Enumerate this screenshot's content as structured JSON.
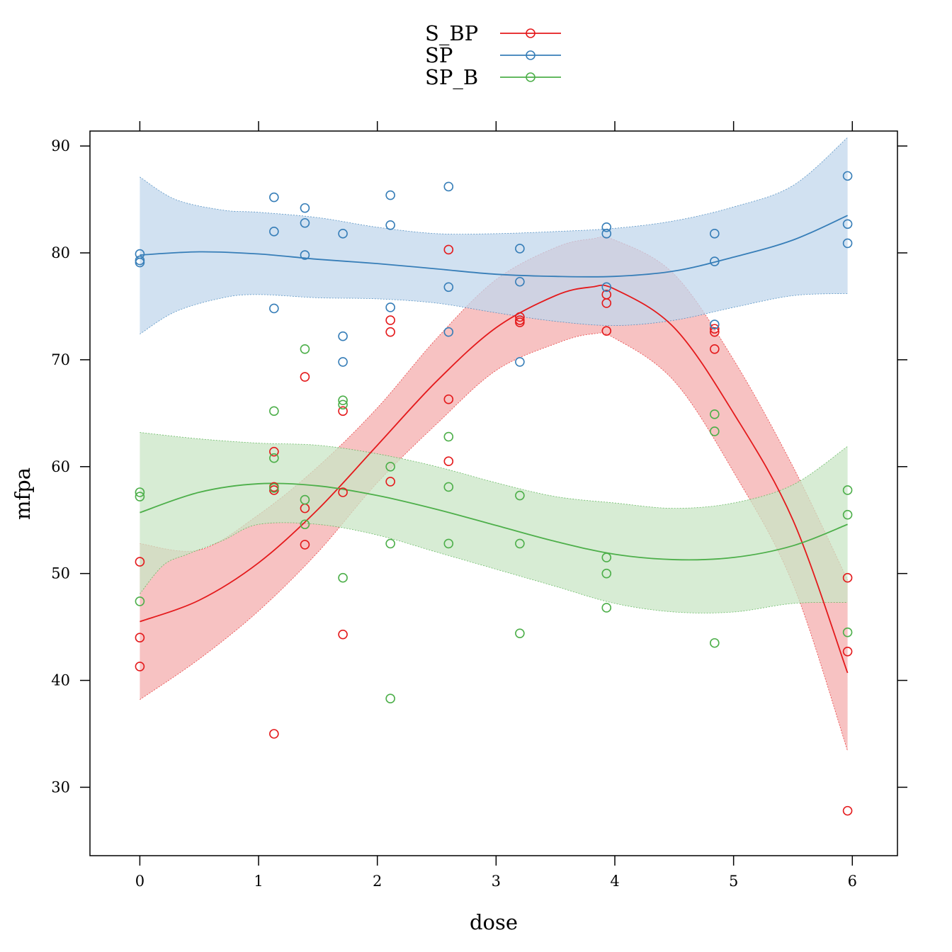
{
  "chart_data": {
    "type": "scatter",
    "xlabel": "dose",
    "ylabel": "mfpa",
    "xlim": [
      -0.42,
      6.38
    ],
    "ylim": [
      23.6,
      91.4
    ],
    "xticks": [
      0,
      1,
      2,
      3,
      4,
      5,
      6
    ],
    "yticks": [
      30,
      40,
      50,
      60,
      70,
      80,
      90
    ],
    "grid": false,
    "legend_position": "top-center",
    "series": [
      {
        "name": "S_BP",
        "color": "#e41a1c",
        "fill": "#f4aeae",
        "points": [
          [
            0,
            51.1
          ],
          [
            0,
            44.0
          ],
          [
            0,
            41.3
          ],
          [
            1.13,
            61.4
          ],
          [
            1.13,
            58.1
          ],
          [
            1.13,
            57.8
          ],
          [
            1.13,
            35.0
          ],
          [
            1.39,
            68.4
          ],
          [
            1.39,
            56.1
          ],
          [
            1.39,
            52.7
          ],
          [
            1.71,
            65.2
          ],
          [
            1.71,
            57.6
          ],
          [
            1.71,
            44.3
          ],
          [
            2.11,
            73.7
          ],
          [
            2.11,
            72.6
          ],
          [
            2.11,
            58.6
          ],
          [
            2.6,
            80.3
          ],
          [
            2.6,
            66.3
          ],
          [
            2.6,
            60.5
          ],
          [
            3.2,
            74.0
          ],
          [
            3.2,
            73.7
          ],
          [
            3.2,
            73.5
          ],
          [
            3.93,
            76.1
          ],
          [
            3.93,
            75.3
          ],
          [
            3.93,
            72.7
          ],
          [
            4.84,
            72.9
          ],
          [
            4.84,
            72.6
          ],
          [
            4.84,
            71.0
          ],
          [
            5.96,
            49.6
          ],
          [
            5.96,
            42.7
          ],
          [
            5.96,
            27.8
          ]
        ],
        "fit": [
          [
            0,
            45.5
          ],
          [
            0.5,
            47.5
          ],
          [
            1,
            51.0
          ],
          [
            1.5,
            56.0
          ],
          [
            2,
            62.0
          ],
          [
            2.5,
            68.0
          ],
          [
            3,
            73.0
          ],
          [
            3.5,
            76.0
          ],
          [
            3.8,
            76.8
          ],
          [
            4,
            76.6
          ],
          [
            4.5,
            73.0
          ],
          [
            5,
            65.0
          ],
          [
            5.5,
            55.0
          ],
          [
            5.96,
            40.7
          ]
        ],
        "band_upper": [
          [
            0,
            52.8
          ],
          [
            0.5,
            52.2
          ],
          [
            1,
            55.5
          ],
          [
            1.5,
            60.0
          ],
          [
            2,
            65.5
          ],
          [
            2.5,
            72.0
          ],
          [
            3,
            77.5
          ],
          [
            3.5,
            80.5
          ],
          [
            3.8,
            81.3
          ],
          [
            4,
            81.2
          ],
          [
            4.5,
            78.0
          ],
          [
            5,
            70.0
          ],
          [
            5.5,
            60.0
          ],
          [
            5.96,
            49.4
          ]
        ],
        "band_lower": [
          [
            0,
            38.2
          ],
          [
            0.5,
            42.0
          ],
          [
            1,
            46.5
          ],
          [
            1.5,
            52.0
          ],
          [
            2,
            58.5
          ],
          [
            2.5,
            64.0
          ],
          [
            3,
            69.0
          ],
          [
            3.5,
            71.5
          ],
          [
            3.8,
            72.4
          ],
          [
            4,
            72.0
          ],
          [
            4.5,
            68.0
          ],
          [
            5,
            59.5
          ],
          [
            5.5,
            49.0
          ],
          [
            5.96,
            33.4
          ]
        ]
      },
      {
        "name": "SP",
        "color": "#377eb8",
        "fill": "#c1d7ec",
        "points": [
          [
            0,
            79.9
          ],
          [
            0,
            79.3
          ],
          [
            0,
            79.1
          ],
          [
            1.13,
            85.2
          ],
          [
            1.13,
            82.0
          ],
          [
            1.13,
            74.8
          ],
          [
            1.39,
            84.2
          ],
          [
            1.39,
            82.8
          ],
          [
            1.39,
            79.8
          ],
          [
            1.71,
            81.8
          ],
          [
            1.71,
            72.2
          ],
          [
            1.71,
            69.8
          ],
          [
            2.11,
            85.4
          ],
          [
            2.11,
            82.6
          ],
          [
            2.11,
            74.9
          ],
          [
            2.6,
            86.2
          ],
          [
            2.6,
            76.8
          ],
          [
            2.6,
            72.6
          ],
          [
            3.2,
            80.4
          ],
          [
            3.2,
            77.3
          ],
          [
            3.2,
            69.8
          ],
          [
            3.93,
            82.4
          ],
          [
            3.93,
            81.8
          ],
          [
            3.93,
            76.8
          ],
          [
            4.84,
            81.8
          ],
          [
            4.84,
            79.2
          ],
          [
            4.84,
            73.3
          ],
          [
            5.96,
            87.2
          ],
          [
            5.96,
            82.7
          ],
          [
            5.96,
            80.9
          ]
        ],
        "fit": [
          [
            0,
            79.8
          ],
          [
            0.5,
            80.1
          ],
          [
            1,
            79.9
          ],
          [
            1.5,
            79.4
          ],
          [
            2,
            79.0
          ],
          [
            2.5,
            78.5
          ],
          [
            3,
            78.0
          ],
          [
            3.5,
            77.8
          ],
          [
            4,
            77.8
          ],
          [
            4.5,
            78.3
          ],
          [
            5,
            79.6
          ],
          [
            5.5,
            81.2
          ],
          [
            5.96,
            83.5
          ]
        ],
        "band_upper": [
          [
            0,
            87.1
          ],
          [
            0.3,
            85.0
          ],
          [
            0.7,
            84.0
          ],
          [
            1,
            83.8
          ],
          [
            1.5,
            83.3
          ],
          [
            2,
            82.4
          ],
          [
            2.5,
            81.8
          ],
          [
            3,
            81.8
          ],
          [
            3.5,
            82.0
          ],
          [
            4,
            82.3
          ],
          [
            4.5,
            83.0
          ],
          [
            5,
            84.3
          ],
          [
            5.5,
            86.3
          ],
          [
            5.96,
            90.8
          ]
        ],
        "band_lower": [
          [
            0,
            72.4
          ],
          [
            0.3,
            74.5
          ],
          [
            0.7,
            75.8
          ],
          [
            1,
            76.1
          ],
          [
            1.5,
            75.8
          ],
          [
            2,
            75.7
          ],
          [
            2.5,
            75.3
          ],
          [
            3,
            74.4
          ],
          [
            3.5,
            73.6
          ],
          [
            4,
            73.2
          ],
          [
            4.5,
            73.7
          ],
          [
            5,
            74.9
          ],
          [
            5.5,
            76.0
          ],
          [
            5.96,
            76.2
          ]
        ]
      },
      {
        "name": "SP_B",
        "color": "#4daf4a",
        "fill": "#c9e5c6",
        "points": [
          [
            0,
            57.6
          ],
          [
            0,
            57.2
          ],
          [
            0,
            47.4
          ],
          [
            1.13,
            65.2
          ],
          [
            1.13,
            60.8
          ],
          [
            1.13,
            58.0
          ],
          [
            1.39,
            71.0
          ],
          [
            1.39,
            56.9
          ],
          [
            1.39,
            54.6
          ],
          [
            1.71,
            66.2
          ],
          [
            1.71,
            65.8
          ],
          [
            1.71,
            49.6
          ],
          [
            2.11,
            60.0
          ],
          [
            2.11,
            52.8
          ],
          [
            2.11,
            38.3
          ],
          [
            2.6,
            62.8
          ],
          [
            2.6,
            58.1
          ],
          [
            2.6,
            52.8
          ],
          [
            3.2,
            57.3
          ],
          [
            3.2,
            52.8
          ],
          [
            3.2,
            44.4
          ],
          [
            3.93,
            51.5
          ],
          [
            3.93,
            50.0
          ],
          [
            3.93,
            46.8
          ],
          [
            4.84,
            64.9
          ],
          [
            4.84,
            63.3
          ],
          [
            4.84,
            43.5
          ],
          [
            5.96,
            57.8
          ],
          [
            5.96,
            55.5
          ],
          [
            5.96,
            44.5
          ]
        ],
        "fit": [
          [
            0,
            55.7
          ],
          [
            0.5,
            57.6
          ],
          [
            1,
            58.4
          ],
          [
            1.5,
            58.2
          ],
          [
            2,
            57.3
          ],
          [
            2.5,
            56.0
          ],
          [
            3,
            54.5
          ],
          [
            3.5,
            53.0
          ],
          [
            4,
            51.8
          ],
          [
            4.5,
            51.3
          ],
          [
            5,
            51.5
          ],
          [
            5.5,
            52.6
          ],
          [
            5.96,
            54.6
          ]
        ],
        "band_upper": [
          [
            0,
            63.2
          ],
          [
            0.5,
            62.6
          ],
          [
            1,
            62.2
          ],
          [
            1.5,
            62.0
          ],
          [
            2,
            61.2
          ],
          [
            2.5,
            60.0
          ],
          [
            3,
            58.5
          ],
          [
            3.5,
            57.2
          ],
          [
            4,
            56.6
          ],
          [
            4.5,
            56.1
          ],
          [
            5,
            56.6
          ],
          [
            5.5,
            58.3
          ],
          [
            5.96,
            61.9
          ]
        ],
        "band_lower": [
          [
            0,
            48.1
          ],
          [
            0.2,
            50.8
          ],
          [
            0.4,
            51.8
          ],
          [
            0.7,
            53.1
          ],
          [
            1,
            54.6
          ],
          [
            1.5,
            54.6
          ],
          [
            2,
            53.6
          ],
          [
            2.5,
            52.0
          ],
          [
            3,
            50.4
          ],
          [
            3.5,
            48.8
          ],
          [
            4,
            47.2
          ],
          [
            4.5,
            46.4
          ],
          [
            5,
            46.4
          ],
          [
            5.5,
            47.2
          ],
          [
            5.96,
            47.3
          ]
        ]
      }
    ]
  }
}
